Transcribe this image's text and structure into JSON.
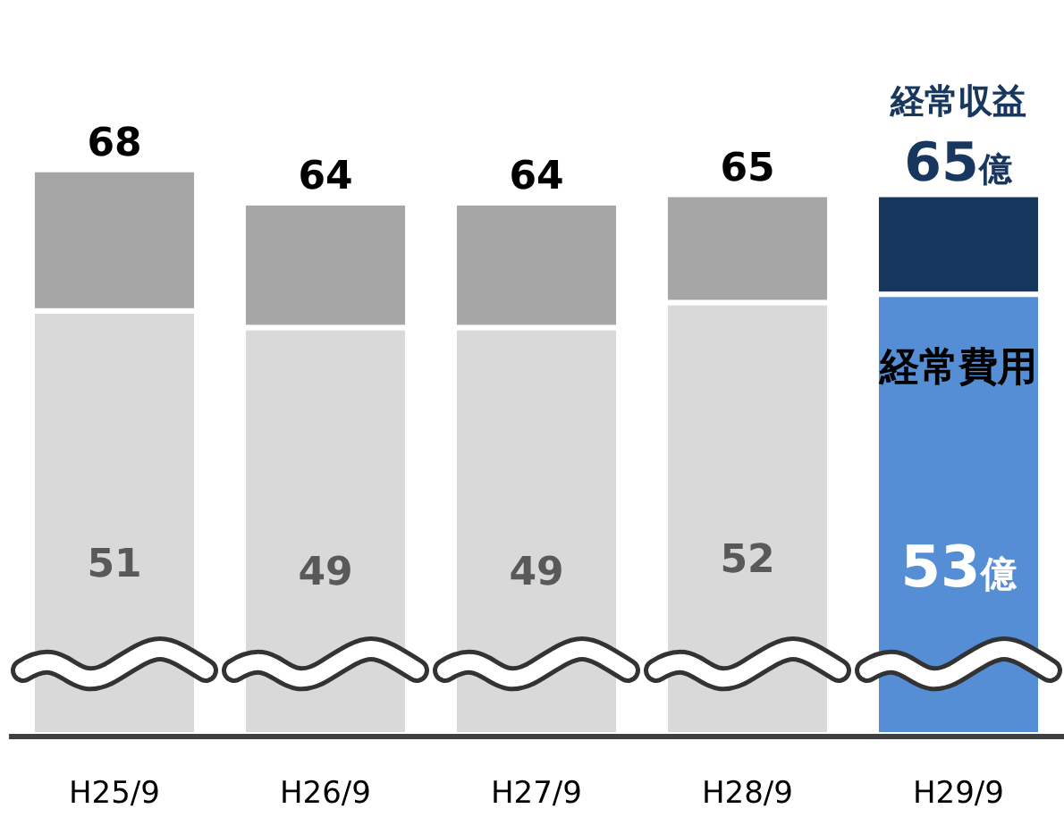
{
  "chart_data": {
    "type": "bar",
    "stacked": true,
    "categories": [
      "H25/9",
      "H26/9",
      "H27/9",
      "H28/9",
      "H29/9"
    ],
    "tick_labels": "x",
    "series": [
      {
        "name": "経常費用",
        "colors": [
          "#d9d9d9",
          "#d9d9d9",
          "#d9d9d9",
          "#d9d9d9",
          "#558ed5"
        ],
        "values": [
          51,
          49,
          49,
          52,
          53
        ],
        "value_labels": [
          "51",
          "49",
          "49",
          "52",
          "53億"
        ]
      },
      {
        "name": "経常収益",
        "colors": [
          "#a6a6a6",
          "#a6a6a6",
          "#a6a6a6",
          "#a6a6a6",
          "#17375e"
        ],
        "values": [
          17,
          15,
          15,
          13,
          12
        ]
      }
    ],
    "totals": [
      "68",
      "64",
      "64",
      "65",
      "65億"
    ]
  }
}
